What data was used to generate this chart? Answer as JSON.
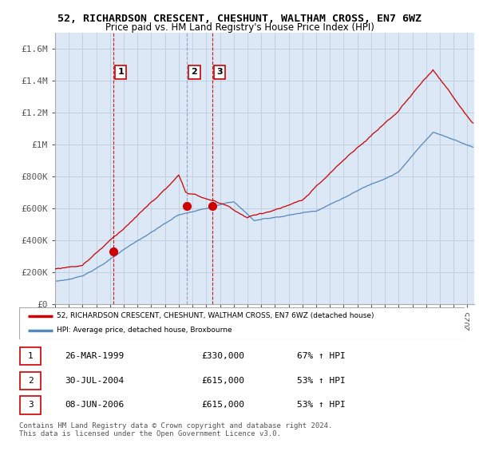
{
  "title": "52, RICHARDSON CRESCENT, CHESHUNT, WALTHAM CROSS, EN7 6WZ",
  "subtitle": "Price paid vs. HM Land Registry's House Price Index (HPI)",
  "ylabel_ticks": [
    "£0",
    "£200K",
    "£400K",
    "£600K",
    "£800K",
    "£1M",
    "£1.2M",
    "£1.4M",
    "£1.6M"
  ],
  "ytick_values": [
    0,
    200000,
    400000,
    600000,
    800000,
    1000000,
    1200000,
    1400000,
    1600000
  ],
  "ylim": [
    0,
    1700000
  ],
  "xlim_start": 1995.0,
  "xlim_end": 2025.5,
  "chart_bg_color": "#dce8f5",
  "sales": [
    {
      "num": 1,
      "year": 1999.23,
      "price": 330000,
      "label": "1",
      "vline_color": "#cc0000",
      "vline_style": "--"
    },
    {
      "num": 2,
      "year": 2004.58,
      "price": 615000,
      "label": "2",
      "vline_color": "#8899bb",
      "vline_style": "--"
    },
    {
      "num": 3,
      "year": 2006.44,
      "price": 615000,
      "label": "3",
      "vline_color": "#cc0000",
      "vline_style": "--"
    }
  ],
  "red_line_color": "#cc0000",
  "blue_line_color": "#5588bb",
  "grid_color": "#bbccdd",
  "background_color": "#ffffff",
  "legend_entries": [
    "52, RICHARDSON CRESCENT, CHESHUNT, WALTHAM CROSS, EN7 6WZ (detached house)",
    "HPI: Average price, detached house, Broxbourne"
  ],
  "table_rows": [
    {
      "num": "1",
      "date": "26-MAR-1999",
      "price": "£330,000",
      "hpi": "67% ↑ HPI"
    },
    {
      "num": "2",
      "date": "30-JUL-2004",
      "price": "£615,000",
      "hpi": "53% ↑ HPI"
    },
    {
      "num": "3",
      "date": "08-JUN-2006",
      "price": "£615,000",
      "hpi": "53% ↑ HPI"
    }
  ],
  "footer": "Contains HM Land Registry data © Crown copyright and database right 2024.\nThis data is licensed under the Open Government Licence v3.0."
}
